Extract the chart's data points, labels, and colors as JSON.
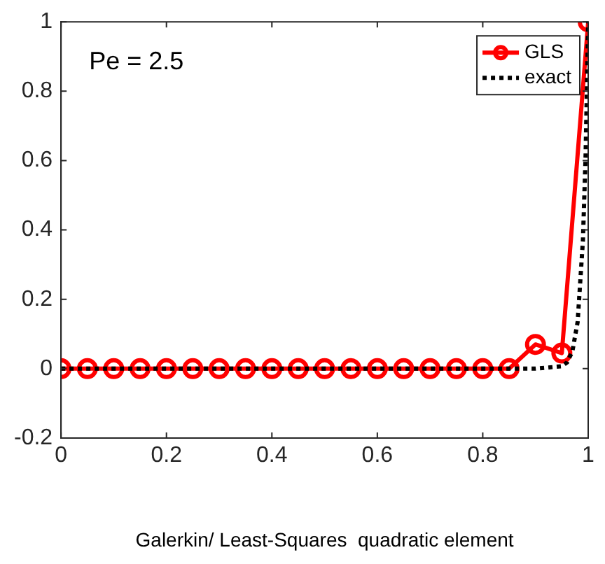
{
  "chart_data": {
    "type": "line",
    "xlabel": "Galerkin/ Least-Squares  quadratic element",
    "annotations": [
      "Pe = 2.5"
    ],
    "series": [
      {
        "name": "GLS",
        "color": "#ff0000",
        "marker": "circle",
        "line_style": "solid",
        "x": [
          0,
          0.05,
          0.1,
          0.15,
          0.2,
          0.25,
          0.3,
          0.35,
          0.4,
          0.45,
          0.5,
          0.55,
          0.6,
          0.65,
          0.7,
          0.75,
          0.8,
          0.85,
          0.9,
          0.95,
          1
        ],
        "values": [
          0,
          0,
          0,
          0,
          0,
          0,
          0,
          0,
          0,
          0,
          0,
          0,
          0,
          0,
          0,
          0,
          0,
          0,
          0.07,
          0.045,
          1
        ]
      },
      {
        "name": "exact",
        "color": "#000000",
        "marker": "none",
        "line_style": "dotted",
        "x": [
          0,
          0.9,
          0.95,
          0.96,
          0.97,
          0.98,
          0.99,
          0.995,
          1
        ],
        "values": [
          0,
          0,
          0.007,
          0.018,
          0.05,
          0.135,
          0.37,
          0.61,
          1
        ]
      }
    ],
    "xlim": [
      0,
      1
    ],
    "ylim": [
      -0.2,
      1
    ],
    "xticks": [
      0,
      0.2,
      0.4,
      0.6,
      0.8,
      1
    ],
    "yticks": [
      -0.2,
      0,
      0.2,
      0.4,
      0.6,
      0.8,
      1
    ],
    "grid": false,
    "legend": "top right"
  }
}
